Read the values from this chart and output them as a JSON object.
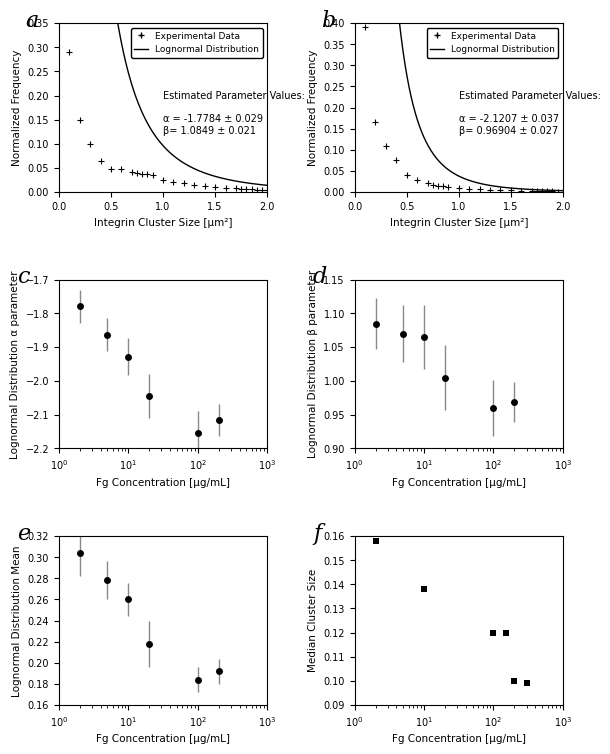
{
  "panel_a": {
    "label": "a",
    "alpha": -1.7784,
    "alpha_err": 0.029,
    "beta": 1.0849,
    "beta_err": 0.021,
    "exp_x": [
      0.1,
      0.2,
      0.3,
      0.4,
      0.5,
      0.6,
      0.7,
      0.75,
      0.8,
      0.85,
      0.9,
      1.0,
      1.1,
      1.2,
      1.3,
      1.4,
      1.5,
      1.6,
      1.7,
      1.75,
      1.8,
      1.85,
      1.9,
      1.95,
      2.0
    ],
    "exp_y": [
      0.29,
      0.15,
      0.1,
      0.065,
      0.047,
      0.047,
      0.042,
      0.04,
      0.038,
      0.037,
      0.035,
      0.025,
      0.02,
      0.018,
      0.015,
      0.012,
      0.01,
      0.009,
      0.008,
      0.007,
      0.007,
      0.006,
      0.005,
      0.004,
      0.003
    ],
    "xlim": [
      0,
      2
    ],
    "ylim": [
      0,
      0.35
    ],
    "yticks": [
      0,
      0.05,
      0.1,
      0.15,
      0.2,
      0.25,
      0.3,
      0.35
    ],
    "xlabel": "Integrin Cluster Size [μm²]",
    "ylabel": "Normalized Frequency",
    "annot": "Estimated Parameter Values:\n\nα = -1.7784 ± 0.029\nβ= 1.0849 ± 0.021"
  },
  "panel_b": {
    "label": "b",
    "alpha": -2.1207,
    "alpha_err": 0.037,
    "beta": 0.96904,
    "beta_err": 0.027,
    "exp_x": [
      0.1,
      0.2,
      0.3,
      0.4,
      0.5,
      0.6,
      0.7,
      0.75,
      0.8,
      0.85,
      0.9,
      1.0,
      1.1,
      1.2,
      1.3,
      1.4,
      1.5,
      1.6,
      1.7,
      1.75,
      1.8,
      1.85,
      1.9,
      1.95,
      2.0
    ],
    "exp_y": [
      0.39,
      0.165,
      0.11,
      0.075,
      0.04,
      0.028,
      0.02,
      0.017,
      0.015,
      0.013,
      0.012,
      0.009,
      0.007,
      0.006,
      0.005,
      0.004,
      0.004,
      0.003,
      0.003,
      0.002,
      0.002,
      0.002,
      0.002,
      0.001,
      0.001
    ],
    "xlim": [
      0,
      2
    ],
    "ylim": [
      0,
      0.4
    ],
    "yticks": [
      0,
      0.05,
      0.1,
      0.15,
      0.2,
      0.25,
      0.3,
      0.35,
      0.4
    ],
    "xlabel": "Integrin Cluster Size [μm²]",
    "ylabel": "Normalized Frequency",
    "annot": "Estimated Parameter Values:\n\nα = -2.1207 ± 0.037\nβ= 0.96904 ± 0.027"
  },
  "panel_c": {
    "label": "c",
    "ylabel": "Lognormal Distribution α parameter",
    "xlabel": "Fg Concentration [μg/mL]",
    "x": [
      2,
      5,
      10,
      20,
      100,
      200
    ],
    "y": [
      -1.779,
      -1.863,
      -1.928,
      -2.045,
      -2.155,
      -2.115
    ],
    "yerr": [
      0.048,
      0.048,
      0.055,
      0.065,
      0.065,
      0.048
    ],
    "xlim": [
      1,
      1000
    ],
    "ylim": [
      -2.2,
      -1.7
    ]
  },
  "panel_d": {
    "label": "d",
    "ylabel": "Lognormal Distribution β parameter",
    "xlabel": "Fg Concentration [μg/mL]",
    "x": [
      2,
      5,
      10,
      20,
      100,
      200
    ],
    "y": [
      1.085,
      1.07,
      1.065,
      1.005,
      0.96,
      0.969
    ],
    "yerr": [
      0.038,
      0.042,
      0.048,
      0.048,
      0.042,
      0.03
    ],
    "xlim": [
      1,
      1000
    ],
    "ylim": [
      0.9,
      1.15
    ]
  },
  "panel_e": {
    "label": "e",
    "ylabel": "Lognormal Distribution Mean",
    "xlabel": "Fg Concentration [μg/mL]",
    "x": [
      2,
      5,
      10,
      20,
      100,
      200
    ],
    "y": [
      0.304,
      0.278,
      0.26,
      0.218,
      0.184,
      0.192
    ],
    "yerr": [
      0.022,
      0.018,
      0.016,
      0.022,
      0.012,
      0.012
    ],
    "xlim": [
      1,
      1000
    ],
    "ylim": [
      0.16,
      0.32
    ]
  },
  "panel_f": {
    "label": "f",
    "ylabel": "Median Cluster Size",
    "xlabel": "Fg Concentration [μg/mL]",
    "x": [
      2,
      10,
      100,
      150,
      200,
      300
    ],
    "y": [
      0.158,
      0.138,
      0.12,
      0.12,
      0.1,
      0.099
    ],
    "xlim": [
      1,
      1000
    ],
    "ylim": [
      0.09,
      0.16
    ]
  }
}
